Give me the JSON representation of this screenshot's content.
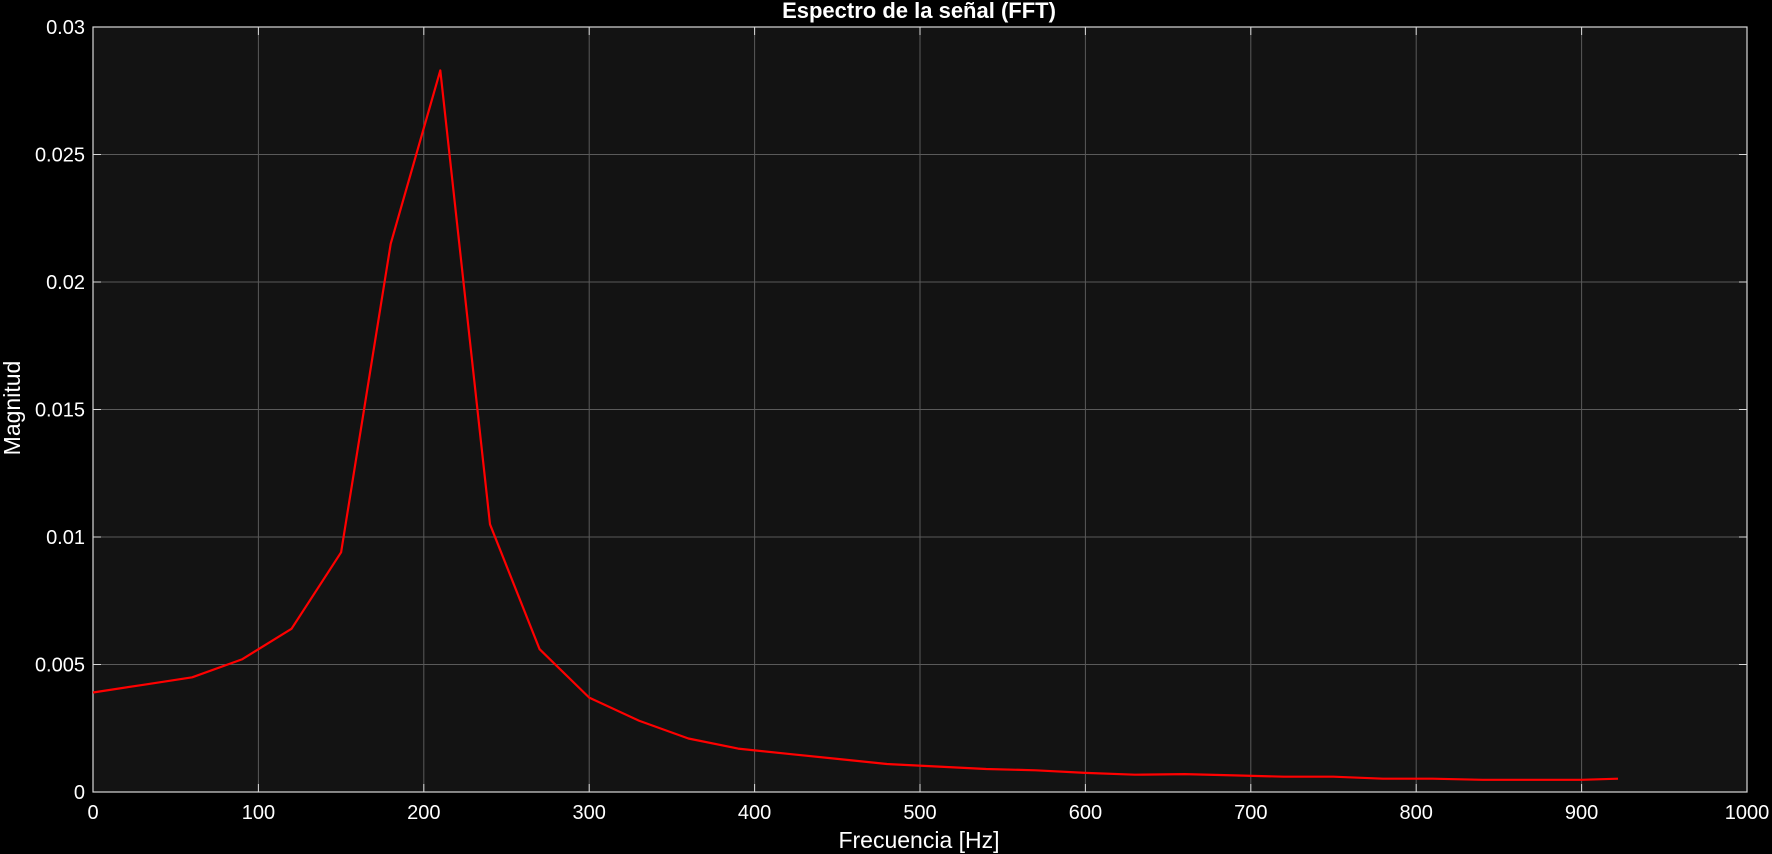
{
  "chart_data": {
    "type": "line",
    "title": "Espectro de la señal (FFT)",
    "xlabel": "Frecuencia [Hz]",
    "ylabel": "Magnitud",
    "xlim": [
      0,
      1000
    ],
    "ylim": [
      0,
      0.03
    ],
    "grid": true,
    "x_ticks": [
      "0",
      "100",
      "200",
      "300",
      "400",
      "500",
      "600",
      "700",
      "800",
      "900",
      "1000"
    ],
    "y_ticks": [
      "0",
      "0.005",
      "0.01",
      "0.015",
      "0.02",
      "0.025",
      "0.03"
    ],
    "colors": {
      "background": "#000000",
      "plot_area": "#131313",
      "grid": "#5a5a5a",
      "line": "#ff0000",
      "text": "#ffffff"
    },
    "series": [
      {
        "x": [
          0,
          30,
          60,
          90,
          120,
          150,
          180,
          210,
          240,
          270,
          300,
          330,
          360,
          390,
          420,
          450,
          480,
          510,
          540,
          570,
          600,
          630,
          660,
          690,
          720,
          750,
          780,
          810,
          840,
          870,
          900,
          922
        ],
        "y": [
          0.0039,
          0.0042,
          0.0045,
          0.0052,
          0.0064,
          0.0094,
          0.0215,
          0.0283,
          0.0105,
          0.0056,
          0.0037,
          0.0028,
          0.0021,
          0.0017,
          0.0015,
          0.0013,
          0.0011,
          0.001,
          0.0009,
          0.00085,
          0.00075,
          0.00068,
          0.0007,
          0.00065,
          0.0006,
          0.0006,
          0.00052,
          0.00052,
          0.00048,
          0.00048,
          0.00048,
          0.00052
        ]
      }
    ]
  }
}
